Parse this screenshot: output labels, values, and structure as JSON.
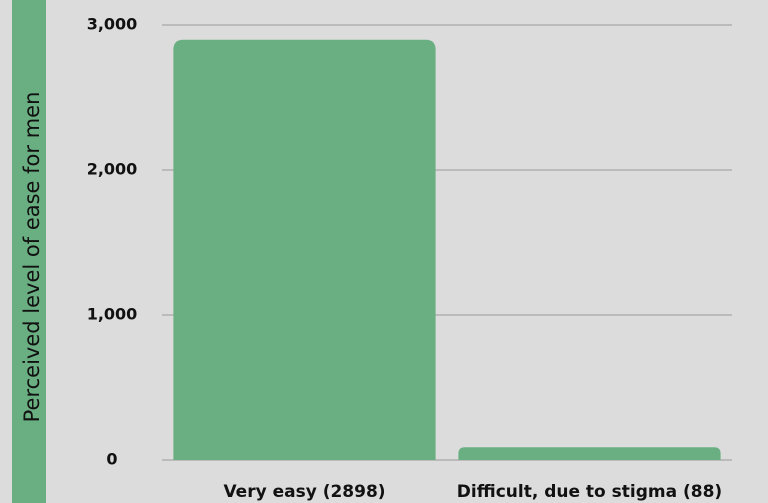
{
  "chart_data": {
    "type": "bar",
    "y_label": "Perceived level of ease for men",
    "categories": [
      "Very easy (2898)",
      "Difficult, due to stigma (88)"
    ],
    "values": [
      2898,
      88
    ],
    "color": "#6aaf82",
    "ylim": [
      0,
      3000
    ],
    "yticks": [
      0,
      {
        "value": 1000,
        "label": "1,000"
      },
      {
        "value": 2000,
        "label": "2,000"
      },
      {
        "value": 3000,
        "label": "3,000"
      }
    ],
    "grid": true
  }
}
